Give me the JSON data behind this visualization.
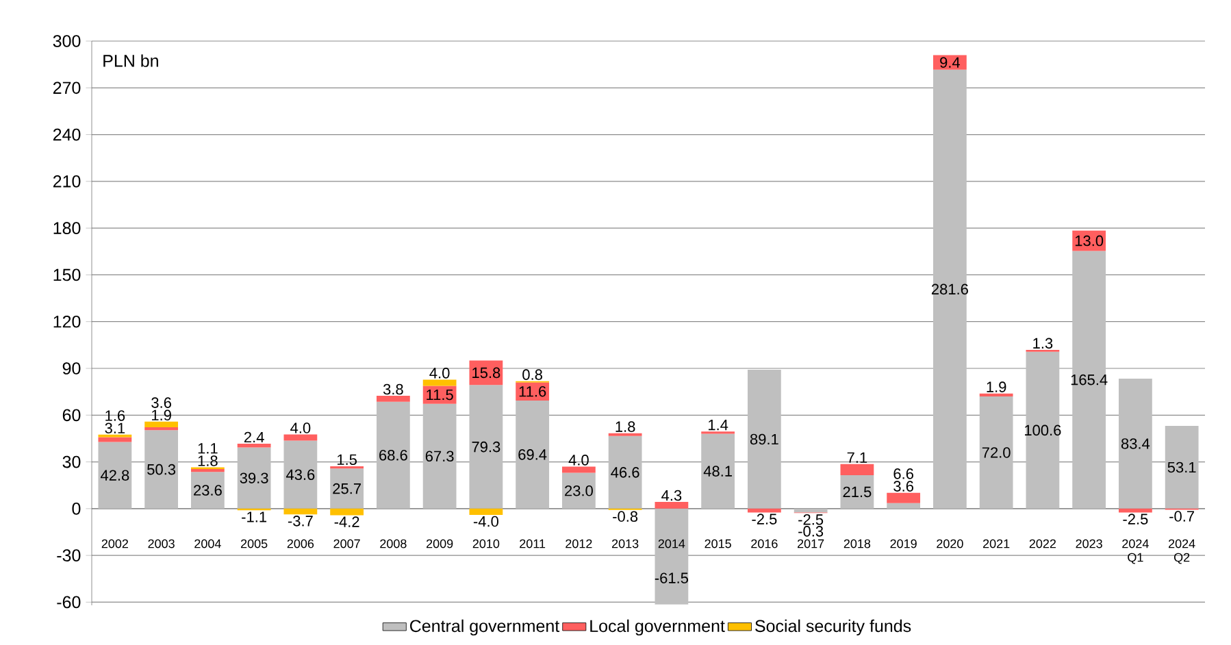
{
  "chart_data": {
    "type": "bar",
    "stacked": true,
    "ylabel": "PLN bn",
    "categories": [
      "2002",
      "2003",
      "2004",
      "2005",
      "2006",
      "2007",
      "2008",
      "2009",
      "2010",
      "2011",
      "2012",
      "2013",
      "2014",
      "2015",
      "2016",
      "2017",
      "2018",
      "2019",
      "2020",
      "2021",
      "2022",
      "2023",
      "2024 Q1",
      "2024 Q2"
    ],
    "series": [
      {
        "name": "Central government",
        "color": "#bfbfbf",
        "values": [
          42.8,
          50.3,
          23.6,
          39.3,
          43.6,
          25.7,
          68.6,
          67.3,
          79.3,
          69.4,
          23.0,
          46.6,
          -61.5,
          48.1,
          89.1,
          -2.5,
          21.5,
          3.6,
          281.6,
          72.0,
          100.6,
          165.4,
          83.4,
          53.1
        ],
        "value_labels": [
          "42.8",
          "50.3",
          "23.6",
          "39.3",
          "43.6",
          "25.7",
          "68.6",
          "67.3",
          "79.3",
          "69.4",
          "23.0",
          "46.6",
          "-61.5",
          "48.1",
          "89.1",
          "-2.5",
          "21.5",
          "3.6",
          "281.6",
          "72.0",
          "100.6",
          "165.4",
          "83.4",
          "53.1"
        ]
      },
      {
        "name": "Local government",
        "color": "#ff5f5f",
        "values": [
          3.1,
          1.9,
          1.8,
          2.4,
          4.0,
          1.5,
          3.8,
          11.5,
          15.8,
          11.6,
          4.0,
          1.8,
          4.3,
          1.4,
          -2.5,
          -0.3,
          7.1,
          6.6,
          9.4,
          1.9,
          1.3,
          13.0,
          -2.5,
          -0.7
        ],
        "value_labels": [
          "3.1",
          "1.9",
          "1.8",
          "2.4",
          "4.0",
          "1.5",
          "3.8",
          "11.5",
          "15.8",
          "11.6",
          "4.0",
          "1.8",
          "4.3",
          "1.4",
          "-2.5",
          "-0.3",
          "7.1",
          "6.6",
          "9.4",
          "1.9",
          "1.3",
          "13.0",
          "-2.5",
          "-0.7"
        ]
      },
      {
        "name": "Social security funds",
        "color": "#ffc000",
        "values": [
          1.6,
          3.6,
          1.1,
          -1.1,
          -3.7,
          -4.2,
          null,
          4.0,
          -4.0,
          0.8,
          null,
          -0.8,
          null,
          null,
          null,
          null,
          null,
          null,
          null,
          null,
          null,
          null,
          null,
          null
        ],
        "value_labels": [
          "1.6",
          "3.6",
          "1.1",
          "-1.1",
          "-3.7",
          "-4.2",
          null,
          "4.0",
          "-4.0",
          "0.8",
          null,
          "-0.8",
          null,
          null,
          null,
          null,
          null,
          null,
          null,
          null,
          null,
          null,
          null,
          null
        ]
      }
    ],
    "ylim": [
      -62,
      300
    ],
    "yticks": [
      -60,
      -30,
      0,
      30,
      60,
      90,
      120,
      150,
      180,
      210,
      240,
      270,
      300
    ],
    "grid": "y",
    "legend": "bottom"
  }
}
